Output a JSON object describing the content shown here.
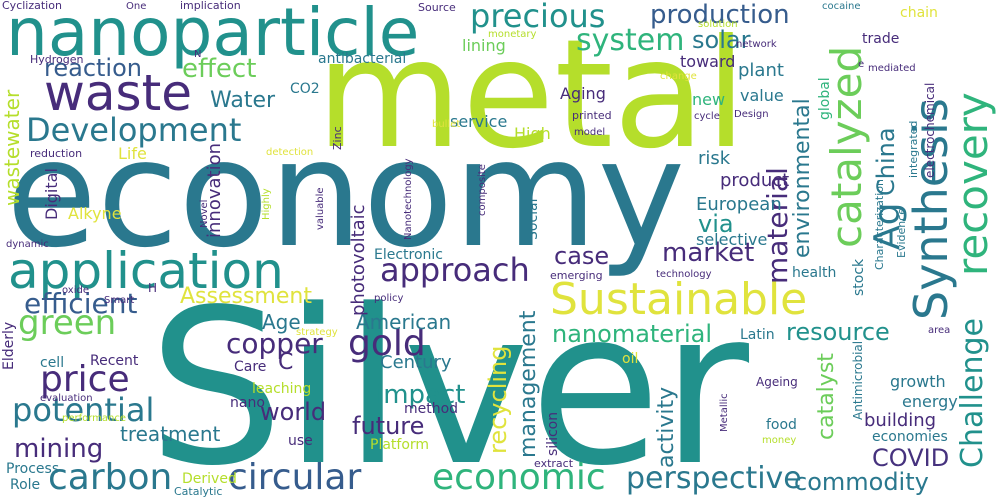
{
  "palette": {
    "dark_purple": "#46327e",
    "purple": "#472c7a",
    "blue": "#365c8d",
    "slate": "#2a788e",
    "teal": "#21918c",
    "green": "#2fb47c",
    "light_green": "#6ccd5a",
    "lime": "#b5de2b",
    "yellow": "#e0e33d"
  },
  "words": [
    "Silver",
    "economy",
    "metal",
    "nanoparticle",
    "Sustainable",
    "Synthesis",
    "application",
    "waste",
    "recovery",
    "catalyzed",
    "Development",
    "circular",
    "carbon",
    "economic",
    "green",
    "potential",
    "Challenge",
    "precious",
    "system",
    "gold",
    "price",
    "perspective",
    "approach",
    "material",
    "copper",
    "management",
    "effect",
    "reaction",
    "production",
    "solar",
    "recycling",
    "impact",
    "mining",
    "resource",
    "environmental",
    "Ag",
    "China",
    "via",
    "market",
    "case",
    "future",
    "world",
    "catalyst",
    "efficient",
    "COVID",
    "Water",
    "American",
    "commodity",
    "treatment",
    "nanomaterial",
    "Assessment",
    "activity",
    "Age",
    "wastewater",
    "innovation",
    "building",
    "Century",
    "method",
    "photovoltaic",
    "Electronic",
    "selective",
    "European",
    "risk",
    "product",
    "value",
    "plant",
    "toward",
    "trade",
    "lining",
    "antibacterial",
    "service",
    "High",
    "new",
    "Aging",
    "Life",
    "Digital",
    "Alkyne",
    "CO2",
    "Social",
    "stock",
    "growth",
    "energy",
    "economies",
    "health",
    "global",
    "cell",
    "Recent",
    "Elderly",
    "Process",
    "Role",
    "Derived",
    "Catalytic",
    "oil",
    "Latin",
    "Care",
    "leaching",
    "nano",
    "use",
    "silicon",
    "Platform",
    "food",
    "money",
    "Ageing",
    "Metallic",
    "Antimicrobial",
    "Characterization",
    "Evidence",
    "integrated",
    "electrochemical",
    "mediated",
    "change",
    "cycle",
    "Design",
    "model",
    "printed",
    "bullet",
    "Zinc",
    "detection",
    "reduction",
    "Hydrogen",
    "N",
    "One",
    "implication",
    "Cyclization",
    "Source",
    "monetary",
    "solution",
    "network",
    "cocaine",
    "chain",
    "e",
    "Novel",
    "Highly",
    "valuable",
    "Nanotechnology",
    "composite",
    "emerging",
    "technology",
    "policy",
    "oxide",
    "Smart",
    "H",
    "strategy",
    "dynamic",
    "evaluation",
    "performance",
    "area",
    "extract",
    "C",
    "Sil"
  ]
}
